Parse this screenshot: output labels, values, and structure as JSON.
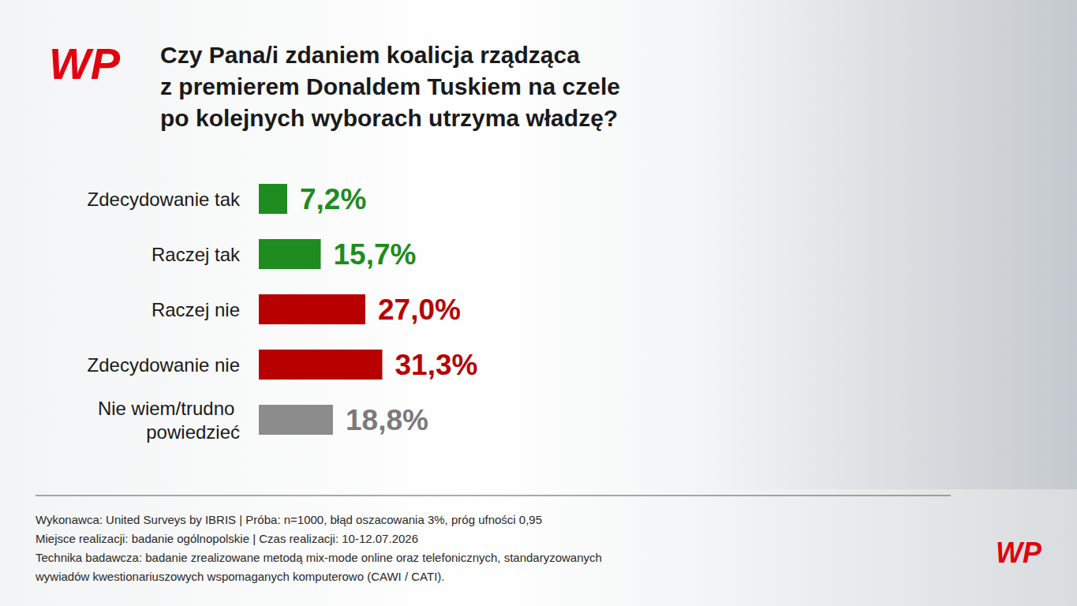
{
  "chart_data": {
    "type": "bar",
    "orientation": "horizontal",
    "title": "Czy Pana/i zdaniem koalicja rządząca z premierem Donaldem Tuskiem na czele po kolejnych wyborach utrzyma władzę?",
    "categories": [
      "Zdecydowanie tak",
      "Raczej tak",
      "Raczej nie",
      "Zdecydowanie nie",
      "Nie wiem/trudno powiedzieć"
    ],
    "values": [
      7.2,
      15.7,
      27.0,
      31.3,
      18.8
    ],
    "value_labels": [
      "7,2%",
      "15,7%",
      "27,0%",
      "31,3%",
      "18,8%"
    ],
    "colors": [
      "#1e8c1e",
      "#1e8c1e",
      "#b80000",
      "#b80000",
      "#8c8c8c"
    ],
    "xlim": [
      0,
      100
    ],
    "data_labels": true,
    "tick_labels": "y",
    "grid": false,
    "logo": "WP",
    "notes": [
      "Wykonawca: United Surveys by IBRIS | Próba: n=1000, błąd oszacowania 3%, próg ufności 0,95",
      "Miejsce realizacji: badanie ogólnopolskie | Czas realizacji: 10-12.07.2026",
      "Technika badawcza: badanie zrealizowane metodą mix-mode online oraz telefonicznych, standaryzowanych wywiadów kwestionariuszowych wspomaganych komputerowo (CAWI / CATI)."
    ]
  }
}
